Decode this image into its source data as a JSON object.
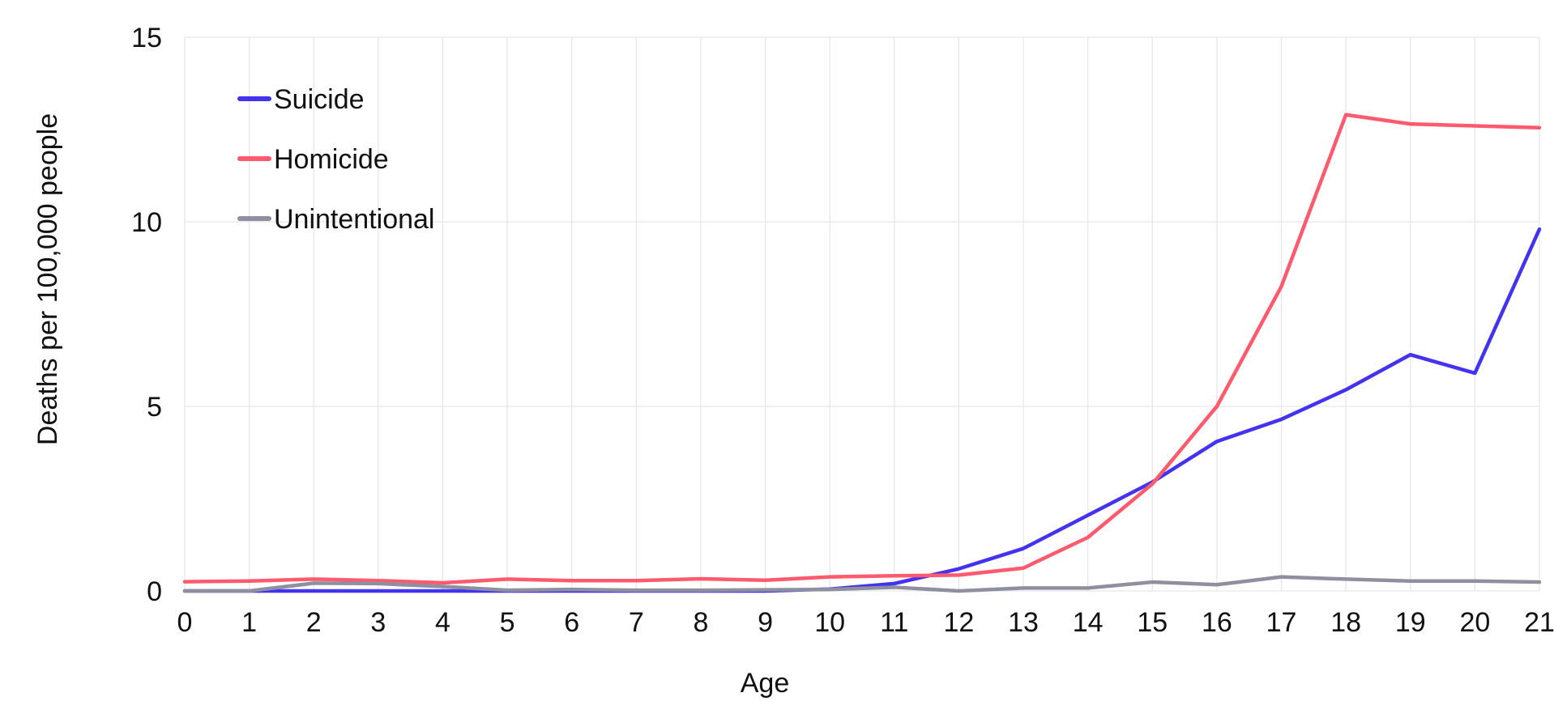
{
  "chart_data": {
    "type": "line",
    "title": "",
    "xlabel": "Age",
    "ylabel": "Deaths per 100,000 people",
    "x": [
      0,
      1,
      2,
      3,
      4,
      5,
      6,
      7,
      8,
      9,
      10,
      11,
      12,
      13,
      14,
      15,
      16,
      17,
      18,
      19,
      20,
      21
    ],
    "xlim": [
      0,
      21
    ],
    "ylim": [
      0,
      15
    ],
    "yticks": [
      0,
      5,
      10,
      15
    ],
    "grid": true,
    "legend_position": "top-left",
    "series": [
      {
        "name": "Suicide",
        "color": "#4433ee",
        "values": [
          0.0,
          0.0,
          0.0,
          0.0,
          0.0,
          0.0,
          0.0,
          0.0,
          0.0,
          0.0,
          0.05,
          0.2,
          0.6,
          1.15,
          2.05,
          2.95,
          4.05,
          4.65,
          5.45,
          6.4,
          5.9,
          9.8
        ]
      },
      {
        "name": "Homicide",
        "color": "#ff5a6e",
        "values": [
          0.25,
          0.27,
          0.32,
          0.28,
          0.22,
          0.32,
          0.28,
          0.28,
          0.33,
          0.29,
          0.38,
          0.41,
          0.43,
          0.62,
          1.45,
          2.9,
          5.0,
          8.25,
          12.9,
          12.65,
          12.6,
          12.55
        ]
      },
      {
        "name": "Unintentional",
        "color": "#8e909f",
        "values": [
          0.0,
          0.0,
          0.21,
          0.2,
          0.12,
          0.02,
          0.04,
          0.02,
          0.02,
          0.03,
          0.04,
          0.1,
          0.0,
          0.08,
          0.08,
          0.24,
          0.17,
          0.38,
          0.32,
          0.27,
          0.27,
          0.24
        ]
      }
    ]
  }
}
